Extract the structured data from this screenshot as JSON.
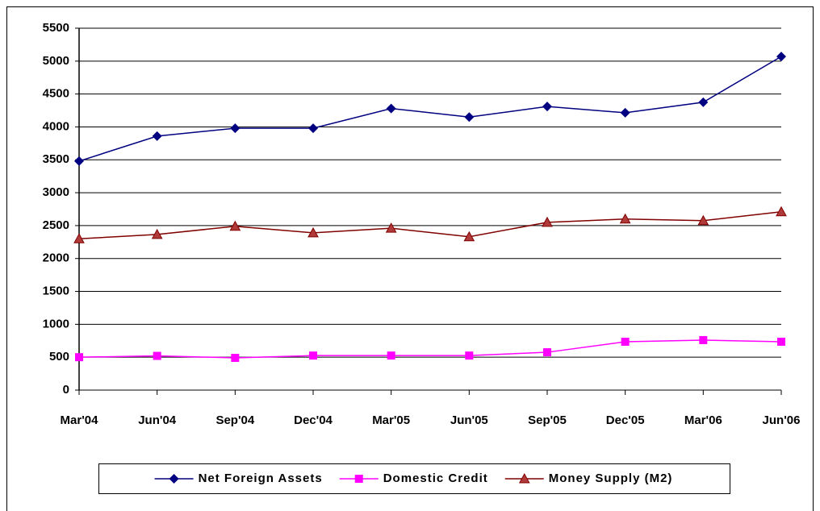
{
  "chart_data": {
    "type": "line",
    "categories": [
      "Mar'04",
      "Jun'04",
      "Sep'04",
      "Dec'04",
      "Mar'05",
      "Jun'05",
      "Sep'05",
      "Dec'05",
      "Mar'06",
      "Jun'06"
    ],
    "series": [
      {
        "name": "Net Foreign Assets",
        "color": "#000080",
        "marker": "diamond",
        "values": [
          3480,
          3860,
          3980,
          3980,
          4280,
          4150,
          4310,
          4215,
          4375,
          5070
        ]
      },
      {
        "name": "Domestic Credit",
        "color": "#ff00ff",
        "marker": "square",
        "values": [
          500,
          520,
          490,
          525,
          525,
          525,
          575,
          735,
          760,
          735
        ]
      },
      {
        "name": "Money Supply (M2)",
        "color": "#800000",
        "marker": "triangle",
        "values": [
          2300,
          2365,
          2490,
          2390,
          2460,
          2330,
          2550,
          2600,
          2575,
          2710
        ]
      }
    ],
    "ylim": [
      0,
      5500
    ],
    "yticks": [
      0,
      500,
      1000,
      1500,
      2000,
      2500,
      3000,
      3500,
      4000,
      4500,
      5000,
      5500
    ],
    "grid": true,
    "legend": "bottom"
  }
}
